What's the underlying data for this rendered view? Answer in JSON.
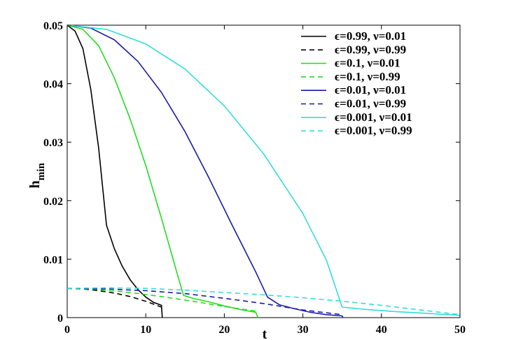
{
  "chart_data": {
    "type": "line",
    "title": "",
    "xlabel": "t",
    "ylabel_main": "h",
    "ylabel_sub": "min",
    "xlim": [
      0,
      50
    ],
    "ylim": [
      0,
      0.05
    ],
    "xticks": [
      0,
      10,
      20,
      30,
      40,
      50
    ],
    "xtick_labels": [
      "0",
      "10",
      "20",
      "30",
      "40",
      "50"
    ],
    "yticks": [
      0,
      0.01,
      0.02,
      0.03,
      0.04,
      0.05
    ],
    "ytick_labels": [
      "0",
      "0.01",
      "0.02",
      "0.03",
      "0.04",
      "0.05"
    ],
    "grid": false,
    "legend_position": "top-right",
    "series": [
      {
        "name": "ϵ=0.99, ν=0.01",
        "color": "#000000",
        "dash": "solid",
        "points": [
          [
            0,
            0.05
          ],
          [
            1,
            0.049
          ],
          [
            2,
            0.046
          ],
          [
            3,
            0.039
          ],
          [
            4,
            0.029
          ],
          [
            5,
            0.0158
          ],
          [
            6,
            0.0118
          ],
          [
            7,
            0.0088
          ],
          [
            8,
            0.0065
          ],
          [
            9,
            0.0048
          ],
          [
            10,
            0.0035
          ],
          [
            11,
            0.0026
          ],
          [
            12,
            0.0021
          ],
          [
            12.1,
            0.0
          ]
        ]
      },
      {
        "name": "ϵ=0.99, ν=0.99",
        "color": "#000000",
        "dash": "dashed",
        "points": [
          [
            0,
            0.005
          ],
          [
            2,
            0.0049
          ],
          [
            4,
            0.0046
          ],
          [
            6,
            0.0042
          ],
          [
            8,
            0.0036
          ],
          [
            10,
            0.0028
          ],
          [
            11,
            0.0023
          ],
          [
            12,
            0.0018
          ]
        ]
      },
      {
        "name": "ϵ=0.1, ν=0.01",
        "color": "#22dd22",
        "dash": "solid",
        "points": [
          [
            0,
            0.05
          ],
          [
            2,
            0.0493
          ],
          [
            4,
            0.0465
          ],
          [
            6,
            0.041
          ],
          [
            8,
            0.034
          ],
          [
            10,
            0.026
          ],
          [
            12,
            0.017
          ],
          [
            14,
            0.0075
          ],
          [
            14.8,
            0.0038
          ],
          [
            16,
            0.0033
          ],
          [
            18,
            0.0027
          ],
          [
            20,
            0.002
          ],
          [
            22,
            0.0014
          ],
          [
            24,
            0.0009
          ],
          [
            24.3,
            0.0
          ]
        ]
      },
      {
        "name": "ϵ=0.1, ν=0.99",
        "color": "#22dd22",
        "dash": "dashed",
        "points": [
          [
            0,
            0.005
          ],
          [
            4,
            0.0048
          ],
          [
            8,
            0.0043
          ],
          [
            12,
            0.0036
          ],
          [
            16,
            0.0028
          ],
          [
            20,
            0.0019
          ],
          [
            24,
            0.0011
          ]
        ]
      },
      {
        "name": "ϵ=0.01, ν=0.01",
        "color": "#1a1aaa",
        "dash": "solid",
        "points": [
          [
            0,
            0.05
          ],
          [
            3,
            0.0495
          ],
          [
            6,
            0.0475
          ],
          [
            9,
            0.0438
          ],
          [
            12,
            0.0385
          ],
          [
            15,
            0.0318
          ],
          [
            18,
            0.024
          ],
          [
            21,
            0.0158
          ],
          [
            24,
            0.0078
          ],
          [
            25.5,
            0.0035
          ],
          [
            27,
            0.0022
          ],
          [
            29,
            0.0015
          ],
          [
            31,
            0.0009
          ],
          [
            33,
            0.0005
          ],
          [
            35,
            0.0003
          ],
          [
            35.1,
            0.0
          ]
        ]
      },
      {
        "name": "ϵ=0.01, ν=0.99",
        "color": "#1a1aaa",
        "dash": "dashed",
        "points": [
          [
            0,
            0.005
          ],
          [
            5,
            0.0049
          ],
          [
            10,
            0.0046
          ],
          [
            15,
            0.0041
          ],
          [
            20,
            0.0033
          ],
          [
            25,
            0.0024
          ],
          [
            30,
            0.0013
          ],
          [
            35,
            0.0005
          ]
        ]
      },
      {
        "name": "ϵ=0.001, ν=0.01",
        "color": "#33dddd",
        "dash": "solid",
        "points": [
          [
            0,
            0.05
          ],
          [
            5,
            0.0493
          ],
          [
            10,
            0.0468
          ],
          [
            15,
            0.0425
          ],
          [
            20,
            0.0362
          ],
          [
            25,
            0.028
          ],
          [
            30,
            0.0178
          ],
          [
            33,
            0.0098
          ],
          [
            35,
            0.0018
          ],
          [
            38,
            0.0014
          ],
          [
            42,
            0.001
          ],
          [
            46,
            0.0007
          ],
          [
            50,
            0.0004
          ]
        ]
      },
      {
        "name": "ϵ=0.001, ν=0.99",
        "color": "#33dddd",
        "dash": "dashed",
        "points": [
          [
            0,
            0.005
          ],
          [
            5,
            0.0051
          ],
          [
            10,
            0.005
          ],
          [
            15,
            0.0047
          ],
          [
            20,
            0.0043
          ],
          [
            25,
            0.0039
          ],
          [
            30,
            0.0034
          ],
          [
            35,
            0.0028
          ],
          [
            40,
            0.0021
          ],
          [
            45,
            0.0013
          ],
          [
            50,
            0.0005
          ]
        ]
      }
    ]
  }
}
